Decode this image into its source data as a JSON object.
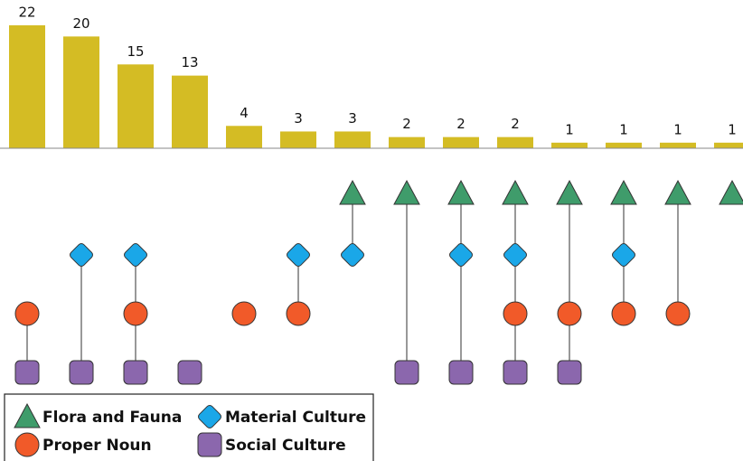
{
  "chart_data": {
    "type": "upset",
    "bar_color": "#d4bc24",
    "sets": [
      {
        "name": "Flora and Fauna",
        "shape": "triangle",
        "color": "#3f9c6b"
      },
      {
        "name": "Material Culture",
        "shape": "diamond",
        "color": "#1aa7e8"
      },
      {
        "name": "Proper Noun",
        "shape": "circle",
        "color": "#f15a29"
      },
      {
        "name": "Social Culture",
        "shape": "square",
        "color": "#8b67ad"
      }
    ],
    "values": [
      22,
      20,
      15,
      13,
      4,
      3,
      3,
      2,
      2,
      2,
      1,
      1,
      1,
      1
    ],
    "members": [
      [
        "Proper Noun",
        "Social Culture"
      ],
      [
        "Material Culture",
        "Social Culture"
      ],
      [
        "Material Culture",
        "Proper Noun",
        "Social Culture"
      ],
      [
        "Social Culture"
      ],
      [
        "Proper Noun"
      ],
      [
        "Material Culture",
        "Proper Noun"
      ],
      [
        "Flora and Fauna",
        "Material Culture"
      ],
      [
        "Flora and Fauna",
        "Social Culture"
      ],
      [
        "Flora and Fauna",
        "Material Culture",
        "Social Culture"
      ],
      [
        "Flora and Fauna",
        "Material Culture",
        "Proper Noun",
        "Social Culture"
      ],
      [
        "Flora and Fauna",
        "Proper Noun",
        "Social Culture"
      ],
      [
        "Flora and Fauna",
        "Material Culture",
        "Proper Noun"
      ],
      [
        "Flora and Fauna",
        "Proper Noun"
      ],
      [
        "Flora and Fauna"
      ]
    ]
  }
}
